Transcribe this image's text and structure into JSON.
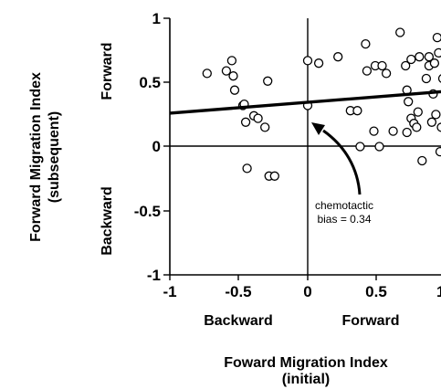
{
  "chart_data": {
    "type": "scatter",
    "xlabel": "Foward Migration Index",
    "xlabel_sub": "(initial)",
    "ylabel": "Forward Migration Index",
    "ylabel_sub": "(subsequent)",
    "xlim": [
      -1,
      1
    ],
    "ylim": [
      -1,
      1
    ],
    "x_ticks": [
      "-1",
      "-0.5",
      "0",
      "0.5",
      "1"
    ],
    "y_ticks": [
      "1",
      "0.5",
      "0",
      "-0.5",
      "-1"
    ],
    "x_direction_labels": {
      "negative": "Backward",
      "positive": "Forward"
    },
    "y_direction_labels": {
      "positive": "Forward",
      "negative": "Backward"
    },
    "points": [
      [
        -0.73,
        0.57
      ],
      [
        -0.59,
        0.59
      ],
      [
        -0.55,
        0.67
      ],
      [
        -0.54,
        0.55
      ],
      [
        -0.53,
        0.44
      ],
      [
        -0.47,
        0.32
      ],
      [
        -0.46,
        0.33
      ],
      [
        -0.45,
        0.19
      ],
      [
        -0.44,
        -0.17
      ],
      [
        -0.39,
        0.24
      ],
      [
        -0.36,
        0.22
      ],
      [
        -0.31,
        0.15
      ],
      [
        -0.29,
        0.51
      ],
      [
        -0.28,
        -0.23
      ],
      [
        -0.24,
        -0.23
      ],
      [
        0.0,
        0.67
      ],
      [
        0.0,
        0.32
      ],
      [
        0.08,
        0.65
      ],
      [
        0.22,
        0.7
      ],
      [
        0.31,
        0.28
      ],
      [
        0.36,
        0.28
      ],
      [
        0.38,
        0.0
      ],
      [
        0.42,
        0.8
      ],
      [
        0.43,
        0.59
      ],
      [
        0.48,
        0.12
      ],
      [
        0.49,
        0.63
      ],
      [
        0.52,
        0.0
      ],
      [
        0.54,
        0.63
      ],
      [
        0.57,
        0.57
      ],
      [
        0.62,
        0.12
      ],
      [
        0.67,
        0.89
      ],
      [
        0.71,
        0.63
      ],
      [
        0.72,
        0.11
      ],
      [
        0.72,
        0.44
      ],
      [
        0.73,
        0.35
      ],
      [
        0.75,
        0.22
      ],
      [
        0.75,
        0.68
      ],
      [
        0.77,
        0.18
      ],
      [
        0.79,
        0.15
      ],
      [
        0.8,
        0.27
      ],
      [
        0.81,
        0.7
      ],
      [
        0.83,
        -0.11
      ],
      [
        0.86,
        0.53
      ],
      [
        0.88,
        0.7
      ],
      [
        0.88,
        0.63
      ],
      [
        0.9,
        0.19
      ],
      [
        0.91,
        0.41
      ],
      [
        0.92,
        0.65
      ],
      [
        0.93,
        0.25
      ],
      [
        0.94,
        0.85
      ],
      [
        0.95,
        0.73
      ],
      [
        0.96,
        -0.04
      ],
      [
        0.97,
        0.15
      ],
      [
        0.98,
        0.53
      ]
    ],
    "regression_line": {
      "x": [
        -1,
        1
      ],
      "y": [
        0.26,
        0.43
      ]
    },
    "annotation": {
      "lines": [
        "chemotactic",
        "bias = 0.34"
      ],
      "target": [
        0.02,
        0.33
      ]
    },
    "zero_lines": true,
    "grid": false
  }
}
